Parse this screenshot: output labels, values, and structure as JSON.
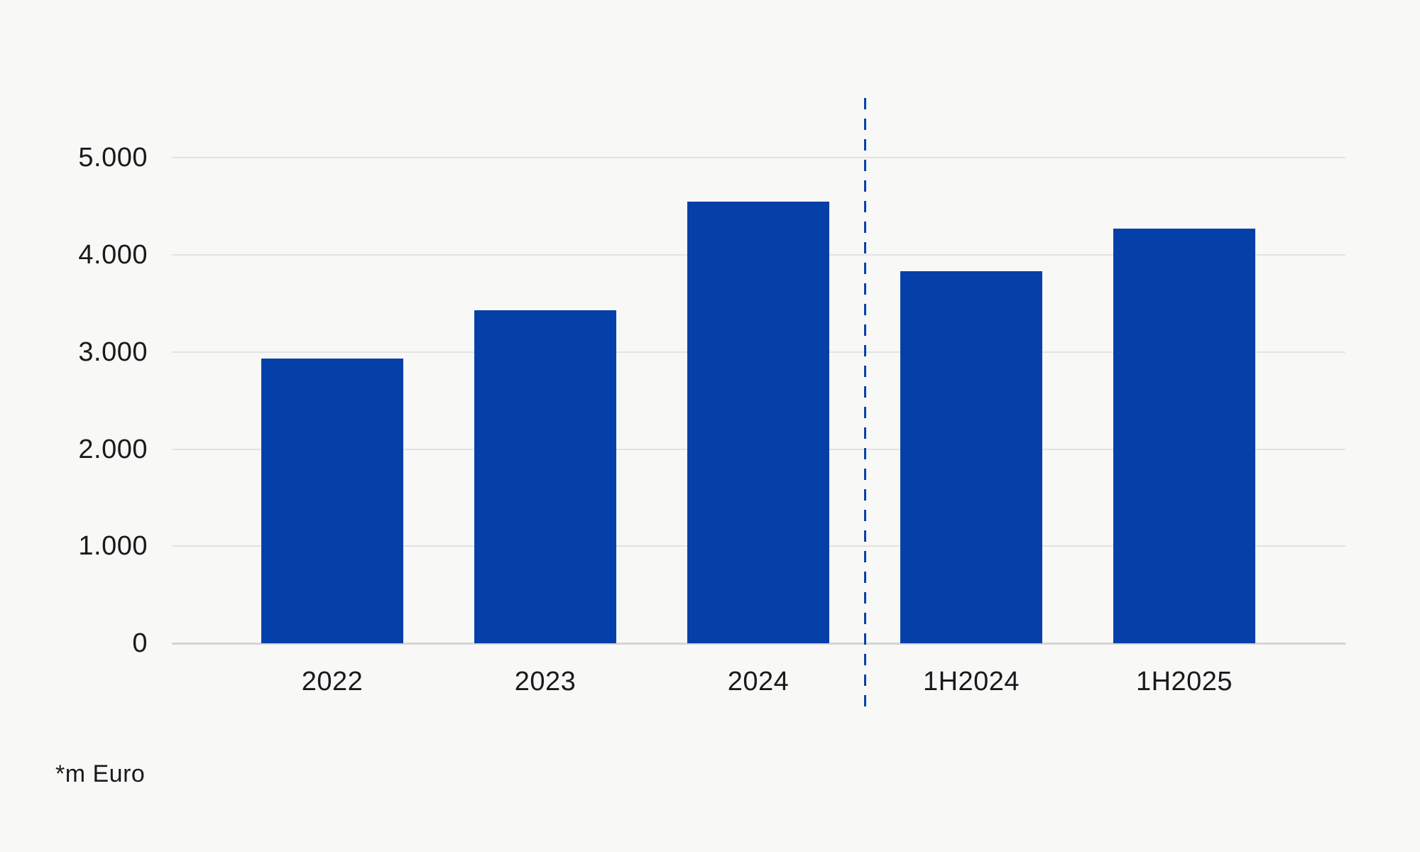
{
  "chart_data": {
    "type": "bar",
    "title": "",
    "xlabel": "",
    "ylabel": "*m Euro",
    "categories": [
      "2022",
      "2023",
      "2024",
      "1H2024",
      "1H2025"
    ],
    "values": [
      2930,
      3430,
      4550,
      3830,
      4270
    ],
    "ylim": [
      0,
      5000
    ],
    "yticks": [
      0,
      1000,
      2000,
      3000,
      4000,
      5000
    ],
    "ytick_labels": [
      "0",
      "1.000",
      "2.000",
      "3.000",
      "4.000",
      "5.000"
    ],
    "grid": "horizontal-only",
    "legend": "none",
    "bar_color": "#0540a8",
    "separator": {
      "style": "vertical-dashed-line",
      "between_categories": [
        "2024",
        "1H2024"
      ],
      "color": "#0540a8"
    }
  },
  "footnote": "*m Euro",
  "colors": {
    "background": "#f8f8f7",
    "bar": "#0540a8",
    "dashed_line": "#0540a8",
    "gridline": "#e3e3e3",
    "baseline": "#d4d4d4",
    "text": "#1a1a1a"
  }
}
